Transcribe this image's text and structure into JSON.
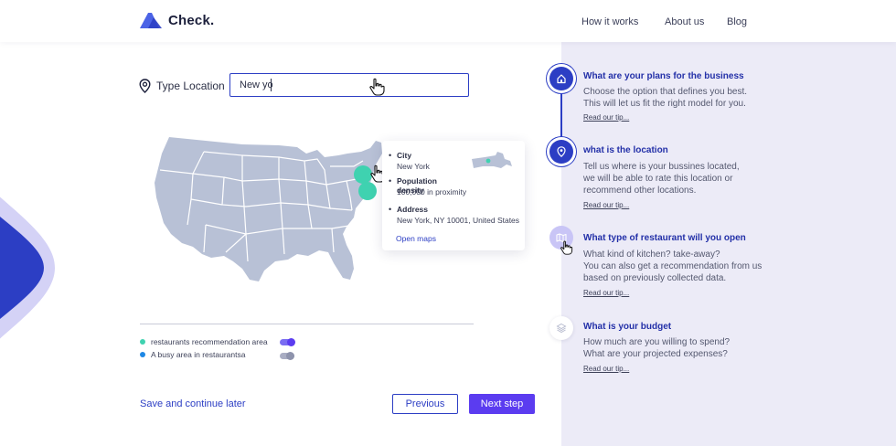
{
  "header": {
    "logo_text": "Check.",
    "nav": [
      "How it works",
      "About us",
      "Blog"
    ]
  },
  "location": {
    "label": "Type Location",
    "value": "New yo"
  },
  "tooltip": {
    "items": [
      {
        "title": "City",
        "value": "New York"
      },
      {
        "title": "Population density",
        "value": "100,000 in proximity"
      },
      {
        "title": "Address",
        "value": "New York, NY 10001, United States"
      }
    ],
    "link": "Open maps"
  },
  "legend": [
    {
      "label": "restaurants recommendation area",
      "dot_color": "#3fd2b0",
      "toggle_on": true
    },
    {
      "label": "A busy area in restaurantsa",
      "dot_color": "#1e88e5",
      "toggle_on": false
    }
  ],
  "actions": {
    "save_label": "Save and continue later",
    "previous_label": "Previous",
    "next_label": "Next step"
  },
  "steps": [
    {
      "icon": "home-icon",
      "title": "What are your plans for the business",
      "desc": [
        "Choose the option that defines you best.",
        "This will let us fit the right model for you."
      ],
      "tip": "Read our tip..."
    },
    {
      "icon": "location-pin-icon",
      "title": "what is the location",
      "desc": [
        "Tell us where is your bussines located,",
        "we will be able to rate this location or",
        "recommend other locations."
      ],
      "tip": "Read our tip..."
    },
    {
      "icon": "map-icon",
      "title": "What type of restaurant will you open",
      "desc": [
        "What kind of kitchen? take-away?",
        "You can also get a recommendation from us",
        "based on previously collected data."
      ],
      "tip": "Read our tip..."
    },
    {
      "icon": "layers-icon",
      "title": "What is your budget",
      "desc": [
        "How much are you willing to spend?",
        "What are your projected expenses?"
      ],
      "tip": "Read our tip..."
    }
  ],
  "colors": {
    "accent": "#2c3ec4",
    "primary_button": "#5b3cf0",
    "teal": "#3fd2b0",
    "map_fill": "#b8c1d6",
    "panel_bg": "#ecebf7"
  }
}
